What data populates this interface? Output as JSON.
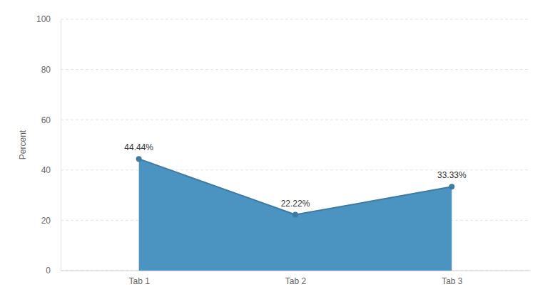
{
  "chart_data": {
    "type": "area",
    "y_label": "Percent",
    "categories": [
      "Tab 1",
      "Tab 2",
      "Tab 3"
    ],
    "values": [
      44.44,
      22.22,
      33.33
    ],
    "value_labels": [
      "44.44%",
      "22.22%",
      "33.33%"
    ],
    "color": "#4b93c1",
    "ylim": [
      0,
      100
    ],
    "yticks": [
      0,
      20,
      40,
      60,
      80,
      100
    ],
    "grid": true,
    "data_labels": true,
    "marker": "circle"
  }
}
